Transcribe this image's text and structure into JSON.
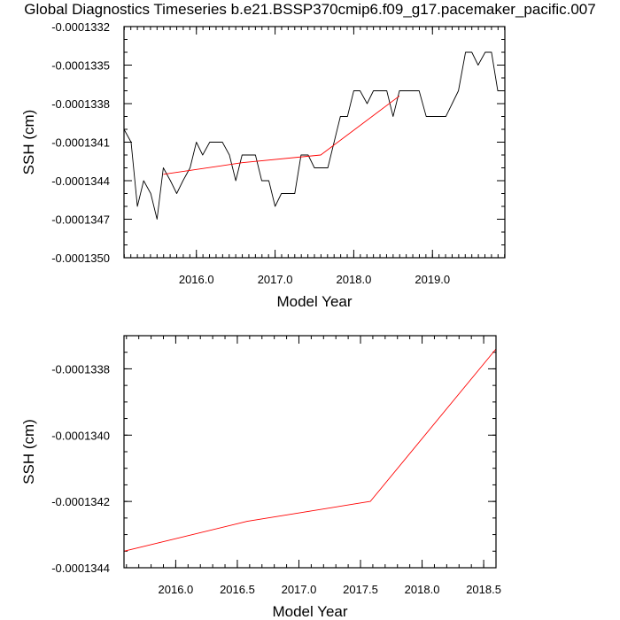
{
  "title": "Global Diagnostics Timeseries b.e21.BSSP370cmip6.f09_g17.pacemaker_pacific.007",
  "colors": {
    "monthly_line": "#000000",
    "annual_line": "#ff0000"
  },
  "chart_data": [
    {
      "type": "line",
      "xlabel": "Model Year",
      "ylabel": "SSH (cm)",
      "xlim": [
        2015.08,
        2019.92
      ],
      "ylim": [
        -0.000135,
        -0.0001332
      ],
      "xticks": [
        2016.0,
        2017.0,
        2018.0,
        2019.0
      ],
      "xtick_labels": [
        "2016.0",
        "2017.0",
        "2018.0",
        "2019.0"
      ],
      "yticks": [
        -0.000135,
        -0.0001347,
        -0.0001344,
        -0.0001341,
        -0.0001338,
        -0.0001335,
        -0.0001332
      ],
      "ytick_labels": [
        "-0.0001350",
        "-0.0001347",
        "-0.0001344",
        "-0.0001341",
        "-0.0001338",
        "-0.0001335",
        "-0.0001332"
      ],
      "grid": false,
      "series": [
        {
          "color": "#000000",
          "x": [
            2015.08,
            2015.17,
            2015.25,
            2015.33,
            2015.42,
            2015.5,
            2015.58,
            2015.67,
            2015.75,
            2015.83,
            2015.92,
            2016.0,
            2016.08,
            2016.17,
            2016.25,
            2016.33,
            2016.42,
            2016.5,
            2016.58,
            2016.67,
            2016.75,
            2016.83,
            2016.92,
            2017.0,
            2017.08,
            2017.17,
            2017.25,
            2017.33,
            2017.42,
            2017.5,
            2017.58,
            2017.67,
            2017.75,
            2017.83,
            2017.92,
            2018.0,
            2018.08,
            2018.17,
            2018.25,
            2018.33,
            2018.42,
            2018.5,
            2018.58,
            2018.67,
            2018.75,
            2018.83,
            2018.92,
            2019.0,
            2019.08,
            2019.17,
            2019.25,
            2019.33,
            2019.42,
            2019.5,
            2019.58,
            2019.67,
            2019.75,
            2019.83,
            2019.92
          ],
          "y": [
            -0.000134,
            -0.0001341,
            -0.0001346,
            -0.0001344,
            -0.0001345,
            -0.0001347,
            -0.0001343,
            -0.0001344,
            -0.0001345,
            -0.0001344,
            -0.0001343,
            -0.0001341,
            -0.0001342,
            -0.0001341,
            -0.0001341,
            -0.0001341,
            -0.0001342,
            -0.0001344,
            -0.0001342,
            -0.0001342,
            -0.0001342,
            -0.0001344,
            -0.0001344,
            -0.0001346,
            -0.0001345,
            -0.0001345,
            -0.0001345,
            -0.0001342,
            -0.0001342,
            -0.0001343,
            -0.0001343,
            -0.0001343,
            -0.0001341,
            -0.0001339,
            -0.0001339,
            -0.0001337,
            -0.0001337,
            -0.0001338,
            -0.0001337,
            -0.0001337,
            -0.0001337,
            -0.0001339,
            -0.0001337,
            -0.0001337,
            -0.0001337,
            -0.0001337,
            -0.0001339,
            -0.0001339,
            -0.0001339,
            -0.0001339,
            -0.0001338,
            -0.0001337,
            -0.0001334,
            -0.0001334,
            -0.0001335,
            -0.0001334,
            -0.0001334,
            -0.0001337,
            -0.0001337
          ]
        },
        {
          "color": "#ff0000",
          "x": [
            2015.58,
            2016.58,
            2017.58,
            2018.58
          ],
          "y": [
            -0.00013435,
            -0.00013426,
            -0.0001342,
            -0.00013374
          ]
        }
      ]
    },
    {
      "type": "line",
      "xlabel": "Model Year",
      "ylabel": "SSH (cm)",
      "xlim": [
        2015.58,
        2018.6
      ],
      "ylim": [
        -0.0001344,
        -0.0001337
      ],
      "xticks": [
        2016.0,
        2016.5,
        2017.0,
        2017.5,
        2018.0,
        2018.5
      ],
      "xtick_labels": [
        "2016.0",
        "2016.5",
        "2017.0",
        "2017.5",
        "2018.0",
        "2018.5"
      ],
      "yticks": [
        -0.0001344,
        -0.0001342,
        -0.000134,
        -0.0001338
      ],
      "ytick_labels": [
        "-0.0001344",
        "-0.0001342",
        "-0.0001340",
        "-0.0001338"
      ],
      "grid": false,
      "series": [
        {
          "color": "#ff0000",
          "x": [
            2015.58,
            2016.58,
            2017.58,
            2018.6
          ],
          "y": [
            -0.00013435,
            -0.00013426,
            -0.0001342,
            -0.00013374
          ]
        }
      ]
    }
  ]
}
